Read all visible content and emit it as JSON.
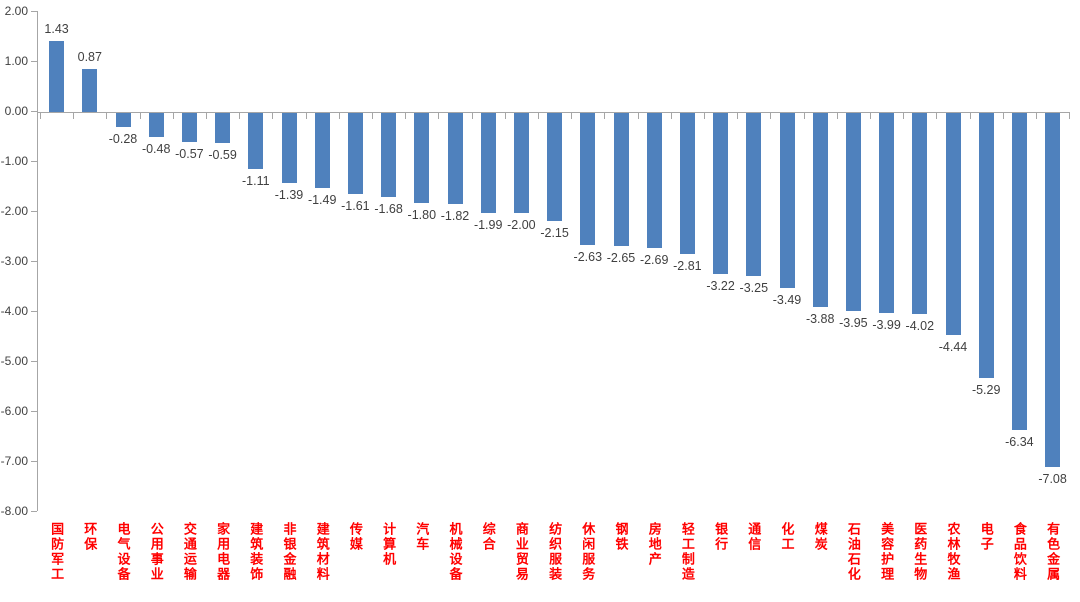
{
  "chart_data": {
    "type": "bar",
    "categories": [
      "国防军工",
      "环保",
      "电气设备",
      "公用事业",
      "交通运输",
      "家用电器",
      "建筑装饰",
      "非银金融",
      "建筑材料",
      "传媒",
      "计算机",
      "汽车",
      "机械设备",
      "综合",
      "商业贸易",
      "纺织服装",
      "休闲服务",
      "钢铁",
      "房地产",
      "轻工制造",
      "银行",
      "通信",
      "化工",
      "煤炭",
      "石油石化",
      "美容护理",
      "医药生物",
      "农林牧渔",
      "电子",
      "食品饮料",
      "有色金属"
    ],
    "values": [
      1.43,
      0.87,
      -0.28,
      -0.48,
      -0.57,
      -0.59,
      -1.11,
      -1.39,
      -1.49,
      -1.61,
      -1.68,
      -1.8,
      -1.82,
      -1.99,
      -2.0,
      -2.15,
      -2.63,
      -2.65,
      -2.69,
      -2.81,
      -3.22,
      -3.25,
      -3.49,
      -3.88,
      -3.95,
      -3.99,
      -4.02,
      -4.44,
      -5.29,
      -6.34,
      -7.08
    ],
    "value_labels": [
      "1.43",
      "0.87",
      "-0.28",
      "-0.48",
      "-0.57",
      "-0.59",
      "-1.11",
      "-1.39",
      "-1.49",
      "-1.61",
      "-1.68",
      "-1.80",
      "-1.82",
      "-1.99",
      "-2.00",
      "-2.15",
      "-2.63",
      "-2.65",
      "-2.69",
      "-2.81",
      "-3.22",
      "-3.25",
      "-3.49",
      "-3.88",
      "-3.95",
      "-3.99",
      "-4.02",
      "-4.44",
      "-5.29",
      "-6.34",
      "-7.08"
    ],
    "y_axis": {
      "tick_labels": [
        "2.00",
        "1.00",
        "0.00",
        "-1.00",
        "-2.00",
        "-3.00",
        "-4.00",
        "-5.00",
        "-6.00",
        "-7.00",
        "-8.00"
      ],
      "min": -8.0,
      "max": 2.0,
      "step": 1.0
    },
    "xlabel": "",
    "ylabel": "",
    "grid": false,
    "legend": "none",
    "colors": {
      "bar": "#4F81BD",
      "value_label": "#404040",
      "y_tick_label": "#404040",
      "category_label": "#FF0000",
      "axis_line": "#A6A6A6"
    }
  }
}
